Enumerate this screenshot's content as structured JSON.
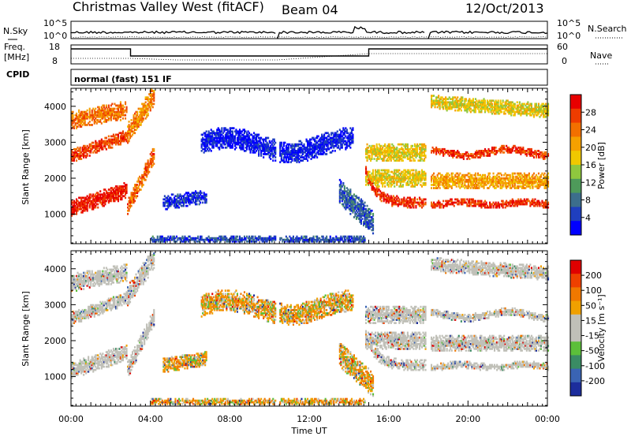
{
  "header": {
    "station": "Christmas Valley West (fitACF)",
    "beam": "Beam 04",
    "date": "12/Oct/2013"
  },
  "strip_nsky": {
    "label": "N.Sky",
    "right_label": "N.Search",
    "left_ticks": [
      "10^5",
      "10^0"
    ],
    "right_ticks": [
      "10^5",
      "10^0"
    ]
  },
  "strip_freq": {
    "label_line1": "Freq.",
    "label_line2": "[MHz]",
    "right_label": "Nave",
    "left_ticks": [
      "18",
      "8"
    ],
    "right_ticks": [
      "60",
      "0"
    ]
  },
  "cpid": {
    "label": "CPID",
    "mode_text": "normal (fast) 151 IF"
  },
  "chart_data": [
    {
      "type": "heatmap",
      "name": "power-panel",
      "ylabel": "Slant Range [km]",
      "x_ticks": [
        "00:00",
        "04:00",
        "08:00",
        "12:00",
        "16:00",
        "20:00",
        "00:00"
      ],
      "x_range_hours": [
        0,
        24
      ],
      "y_ticks": [
        1000,
        2000,
        3000,
        4000
      ],
      "y_range_km": [
        180,
        4500
      ],
      "colorbar": {
        "label": "Power [dB]",
        "ticks": [
          "4",
          "8",
          "12",
          "16",
          "20",
          "24",
          "28"
        ],
        "colors": [
          "#0000ff",
          "#1f3fbf",
          "#3c6e8c",
          "#4e9a5a",
          "#8fc73e",
          "#f0c800",
          "#f5a000",
          "#f27000",
          "#ee3c00",
          "#e80000"
        ]
      }
    },
    {
      "type": "heatmap",
      "name": "velocity-panel",
      "ylabel": "Slant Range [km]",
      "xlabel": "Time UT",
      "x_ticks": [
        "00:00",
        "04:00",
        "08:00",
        "12:00",
        "16:00",
        "20:00",
        "00:00"
      ],
      "x_range_hours": [
        0,
        24
      ],
      "y_ticks": [
        1000,
        2000,
        3000,
        4000
      ],
      "y_range_km": [
        180,
        4500
      ],
      "colorbar": {
        "label": "Velocity [m s⁻¹]",
        "ticks": [
          "200",
          "100",
          "50",
          "15",
          "-15",
          "-50",
          "-100",
          "-200"
        ],
        "colors": [
          "#1c2d9c",
          "#3a64b4",
          "#3a8c64",
          "#5cbf3a",
          "#c0c0b8",
          "#c0c0b8",
          "#f0a000",
          "#f07800",
          "#ee4000",
          "#e00000"
        ]
      }
    }
  ]
}
